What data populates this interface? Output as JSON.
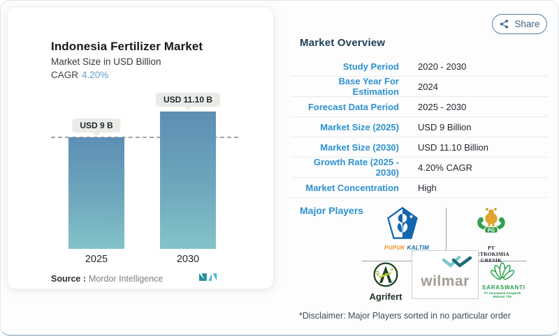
{
  "header": {
    "share_label": "Share"
  },
  "chart_card": {
    "title": "Indonesia Fertilizer Market",
    "subtitle": "Market Size in USD Billion",
    "cagr_label": "CAGR",
    "cagr_value": "4.20%",
    "source_label": "Source :",
    "source_name": "Mordor Intelligence"
  },
  "chart_data": {
    "type": "bar",
    "title": "Indonesia Fertilizer Market",
    "subtitle": "Market Size in USD Billion",
    "cagr": "4.20%",
    "categories": [
      "2025",
      "2030"
    ],
    "values": [
      9,
      11.1
    ],
    "bar_labels": [
      "USD 9 B",
      "USD 11.10 B"
    ],
    "ylim": [
      0,
      12
    ],
    "reference_line": {
      "at_value": 9,
      "style": "dashed"
    },
    "bar_color_top": "#5d8eb3",
    "bar_color_bottom": "#83c3c8"
  },
  "overview": {
    "heading": "Market Overview",
    "rows": [
      {
        "label": "Study Period",
        "value": "2020 - 2030"
      },
      {
        "label": "Base Year For Estimation",
        "value": "2024"
      },
      {
        "label": "Forecast Data Period",
        "value": "2025 - 2030"
      },
      {
        "label": "Market Size (2025)",
        "value": "USD 9 Billion"
      },
      {
        "label": "Market Size (2030)",
        "value": "USD 11.10 Billion"
      },
      {
        "label": "Growth Rate (2025 - 2030)",
        "value": "4.20% CAGR"
      },
      {
        "label": "Market Concentration",
        "value": "High"
      }
    ]
  },
  "players": {
    "heading": "Major Players",
    "pupuk_kaltim": {
      "name": "Pupuk Kaltim",
      "word1": "PUPUK",
      "word2": "KALTIM"
    },
    "petrokimia": {
      "name": "PT Petrokimia Gresik",
      "monogram": "PG",
      "caption": "PT PETROKIMIA GRESIK"
    },
    "agrifert": {
      "name": "Agrifert",
      "caption": "Agrifert"
    },
    "wilmar": {
      "name": "Wilmar",
      "caption": "wilmar"
    },
    "saraswanti": {
      "name": "Saraswanti",
      "caption": "SARASWANTI",
      "subcaption": "PT Saraswanti Anugerah Makmur Tbk"
    }
  },
  "disclaimer": "*Disclaimer: Major Players sorted in no particular order",
  "colors": {
    "accent_blue": "#2e91cf",
    "navy": "#1e3e54",
    "share_blue": "#3e6384",
    "cagr_blue": "#5e9fd0",
    "bar_top": "#5d8eb3",
    "bar_bottom": "#83c3c8"
  }
}
